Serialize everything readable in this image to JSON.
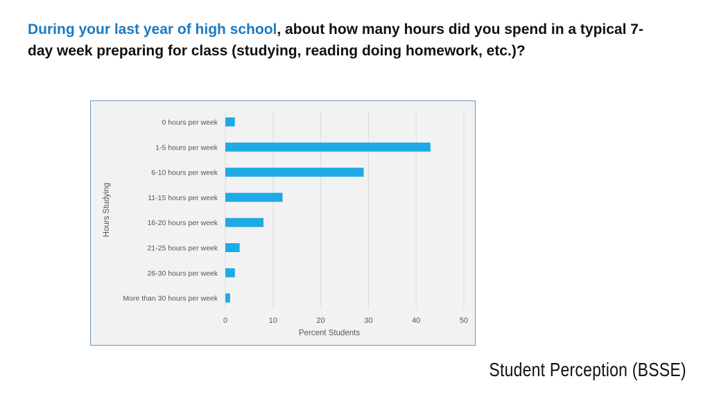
{
  "heading": {
    "highlight": "During your last year of high school",
    "rest": ", about how many hours did you spend in a typical 7-day week preparing for class (studying, reading doing homework, etc.)?"
  },
  "footer": {
    "text": "Student Perception (BSSE)"
  },
  "colors": {
    "bar": "#1eaae6",
    "highlight": "#1a7ac4",
    "frame": "#6f95b8",
    "plot_bg": "#f2f2f2",
    "grid": "#dcdcdc"
  },
  "chart_data": {
    "type": "bar",
    "orientation": "horizontal",
    "categories": [
      "0 hours per week",
      "1-5 hours per week",
      "6-10 hours per week",
      "11-15 hours per week",
      "16-20 hours per week",
      "21-25 hours per week",
      "26-30 hours per week",
      "More than 30 hours per week"
    ],
    "values": [
      2,
      43,
      29,
      12,
      8,
      3,
      2,
      1
    ],
    "xlabel": "Percent Students",
    "ylabel": "Hours Studying",
    "xlim": [
      0,
      50
    ],
    "xticks": [
      0,
      10,
      20,
      30,
      40,
      50
    ],
    "grid": "vertical"
  }
}
